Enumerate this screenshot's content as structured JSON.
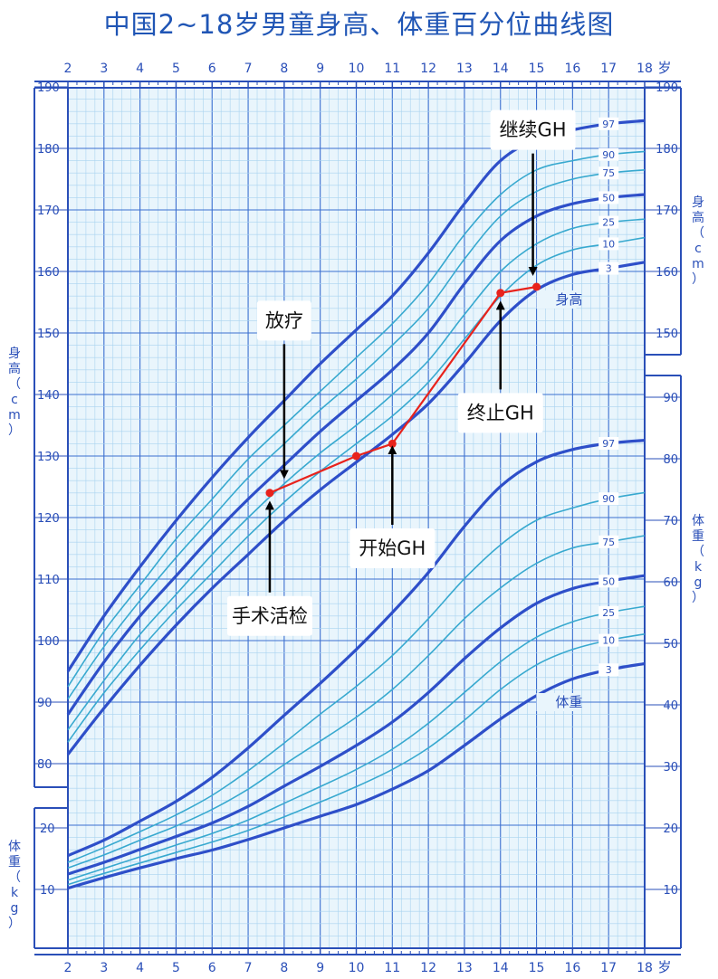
{
  "title": "中国2~18岁男童身高、体重百分位曲线图",
  "colors": {
    "frame": "#2a4fb8",
    "major_curve": "#2e4fc9",
    "minor_curve": "#38a9cf",
    "grid_major": "#3b6fd0",
    "grid_minor": "#a9d3f0",
    "patient": "#e8231c",
    "title": "#1f55b5"
  },
  "chart_data": {
    "type": "line",
    "x": {
      "label": "岁",
      "min": 2,
      "max": 18,
      "ticks": [
        2,
        3,
        4,
        5,
        6,
        7,
        8,
        9,
        10,
        11,
        12,
        13,
        14,
        15,
        16,
        17,
        18
      ]
    },
    "height_axis": {
      "label": "身高（cm）",
      "min": 80,
      "max": 190,
      "ticks": [
        80,
        90,
        100,
        110,
        120,
        130,
        140,
        150,
        160,
        170,
        180,
        190
      ]
    },
    "weight_axis_left": {
      "label": "体重（kg）",
      "ticks": [
        10,
        20
      ]
    },
    "weight_axis_right": {
      "label": "体重（kg）",
      "ticks": [
        10,
        20,
        30,
        40,
        50,
        60,
        70,
        80,
        90
      ]
    },
    "grid": true,
    "height_label": "身高",
    "weight_label": "体重",
    "curve_ages": [
      2,
      3,
      4,
      5,
      6,
      7,
      8,
      9,
      10,
      11,
      12,
      13,
      14,
      15,
      16,
      17,
      18
    ],
    "height_percentiles": [
      {
        "name": "3",
        "major": true,
        "values": [
          81.5,
          89,
          96,
          102.5,
          108.5,
          114,
          119.5,
          124.5,
          129,
          133.5,
          138.5,
          145,
          152,
          157,
          159.5,
          160.5,
          161.5
        ]
      },
      {
        "name": "10",
        "major": false,
        "values": [
          83.5,
          91.5,
          98.5,
          105,
          111,
          117,
          122.5,
          127.5,
          132,
          136.5,
          142,
          149,
          156,
          161,
          163.5,
          164.5,
          165.5
        ]
      },
      {
        "name": "25",
        "major": false,
        "values": [
          85.5,
          93.5,
          101,
          107.5,
          114,
          120,
          125.5,
          130.5,
          135,
          140,
          145.5,
          153,
          160,
          164.5,
          167,
          168,
          168.5
        ]
      },
      {
        "name": "50",
        "major": true,
        "values": [
          88,
          96.5,
          104,
          110.5,
          117,
          123,
          128.5,
          134,
          139,
          144,
          150,
          158,
          165,
          169,
          171,
          172,
          172.5
        ]
      },
      {
        "name": "75",
        "major": false,
        "values": [
          90.5,
          99,
          106.5,
          113.5,
          120,
          126.5,
          132,
          137.5,
          142.5,
          148,
          154,
          162,
          169,
          173,
          175,
          176,
          176.5
        ]
      },
      {
        "name": "90",
        "major": false,
        "values": [
          92.5,
          101.5,
          109,
          116.5,
          123,
          129.5,
          135,
          140.5,
          146,
          151.5,
          158,
          166,
          172.5,
          176.5,
          178,
          179,
          179.5
        ]
      },
      {
        "name": "97",
        "major": true,
        "values": [
          95,
          104,
          112,
          119.5,
          126.5,
          133,
          139,
          145,
          150.5,
          156,
          163,
          171,
          178,
          181.5,
          183,
          184,
          184.5
        ]
      }
    ],
    "weight_percentiles": [
      {
        "name": "3",
        "major": true,
        "values": [
          10.2,
          11.9,
          13.5,
          15,
          16.4,
          18.1,
          20,
          21.9,
          23.8,
          26.3,
          29.3,
          33.4,
          37.7,
          41.5,
          44.2,
          45.7,
          46.7
        ]
      },
      {
        "name": "10",
        "major": false,
        "values": [
          10.8,
          12.6,
          14.3,
          16,
          17.7,
          19.6,
          21.8,
          24.2,
          26.7,
          29.5,
          33,
          37.5,
          42.5,
          46.5,
          49,
          50.5,
          51.5
        ]
      },
      {
        "name": "25",
        "major": false,
        "values": [
          11.5,
          13.4,
          15.3,
          17.2,
          19.1,
          21.3,
          24,
          26.7,
          29.5,
          32.8,
          37,
          42,
          47,
          51,
          53.5,
          55,
          56
        ]
      },
      {
        "name": "50",
        "major": true,
        "values": [
          12.5,
          14.4,
          16.5,
          18.6,
          20.8,
          23.5,
          26.8,
          30,
          33.4,
          37.2,
          42,
          47.5,
          52.5,
          56.5,
          58.9,
          60.1,
          61
        ]
      },
      {
        "name": "75",
        "major": false,
        "values": [
          13.5,
          15.6,
          18,
          20.3,
          23,
          26.3,
          30.3,
          34.1,
          38,
          42.5,
          48,
          54,
          59,
          63,
          65.5,
          66.5,
          67.5
        ]
      },
      {
        "name": "90",
        "major": false,
        "values": [
          14.4,
          16.8,
          19.4,
          22.1,
          25.3,
          29.3,
          33.8,
          38.5,
          43,
          48,
          54,
          60.5,
          66,
          70,
          72,
          73.5,
          74.5
        ]
      },
      {
        "name": "97",
        "major": true,
        "values": [
          15.5,
          18,
          21.1,
          24.3,
          28.2,
          33,
          38.3,
          43.5,
          49,
          55,
          61.5,
          69,
          75.5,
          79.5,
          81.5,
          82.5,
          83
        ]
      }
    ],
    "patient_series": {
      "x": [
        7.6,
        10,
        11,
        14,
        15
      ],
      "y": [
        124,
        130,
        132,
        156.5,
        157.5
      ]
    },
    "annotations": [
      {
        "text": "放疗",
        "x": 8,
        "y": 152,
        "arrow_to_y": 127
      },
      {
        "text": "手术活检",
        "x": 7.6,
        "y": 104,
        "arrow_to_y": 122
      },
      {
        "text": "开始GH",
        "x": 11,
        "y": 115,
        "arrow_to_y": 131
      },
      {
        "text": "终止GH",
        "x": 14,
        "y": 137,
        "arrow_to_y": 154.5
      },
      {
        "text": "继续GH",
        "x": 14.9,
        "y": 183,
        "arrow_to_y": 160
      }
    ]
  }
}
